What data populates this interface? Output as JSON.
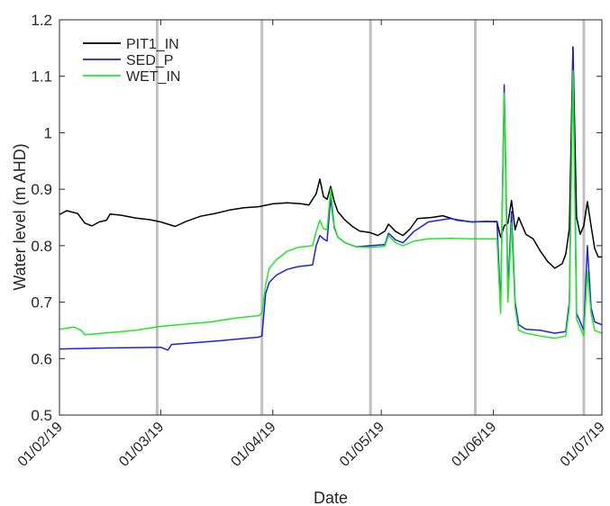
{
  "chart_data": {
    "type": "line",
    "title": "",
    "xlabel": "Date",
    "ylabel": "Water level (m AHD)",
    "x_ticks": [
      "01/02/19",
      "01/03/19",
      "01/04/19",
      "01/05/19",
      "01/06/19",
      "01/07/19"
    ],
    "x_range": [
      "01/02/19",
      "01/07/19"
    ],
    "ylim": [
      0.5,
      1.2
    ],
    "y_ticks": [
      "0.5",
      "0.6",
      "0.7",
      "0.8",
      "0.9",
      "1",
      "1.1",
      "1.2"
    ],
    "grid": false,
    "legend_position": "top-left",
    "vertical_markers": [
      "28/02/19",
      "29/03/19",
      "28/04/19",
      "27/05/19",
      "26/06/19"
    ],
    "marker_color": "#c0c0c0",
    "series": [
      {
        "name": "PIT1_IN",
        "color": "#000000",
        "points": [
          [
            "01/02/19",
            0.855
          ],
          [
            "03/02/19",
            0.862
          ],
          [
            "06/02/19",
            0.857
          ],
          [
            "08/02/19",
            0.84
          ],
          [
            "10/02/19",
            0.835
          ],
          [
            "12/02/19",
            0.842
          ],
          [
            "14/02/19",
            0.845
          ],
          [
            "15/02/19",
            0.856
          ],
          [
            "18/02/19",
            0.854
          ],
          [
            "22/02/19",
            0.849
          ],
          [
            "26/02/19",
            0.846
          ],
          [
            "01/03/19",
            0.842
          ],
          [
            "05/03/19",
            0.834
          ],
          [
            "08/03/19",
            0.843
          ],
          [
            "12/03/19",
            0.852
          ],
          [
            "16/03/19",
            0.857
          ],
          [
            "20/03/19",
            0.863
          ],
          [
            "24/03/19",
            0.867
          ],
          [
            "28/03/19",
            0.869
          ],
          [
            "01/04/19",
            0.874
          ],
          [
            "05/04/19",
            0.876
          ],
          [
            "09/04/19",
            0.874
          ],
          [
            "11/04/19",
            0.872
          ],
          [
            "13/04/19",
            0.892
          ],
          [
            "14/04/19",
            0.918
          ],
          [
            "15/04/19",
            0.887
          ],
          [
            "16/04/19",
            0.882
          ],
          [
            "17/04/19",
            0.905
          ],
          [
            "18/04/19",
            0.878
          ],
          [
            "19/04/19",
            0.86
          ],
          [
            "21/04/19",
            0.845
          ],
          [
            "23/04/19",
            0.834
          ],
          [
            "25/04/19",
            0.826
          ],
          [
            "28/04/19",
            0.823
          ],
          [
            "30/04/19",
            0.818
          ],
          [
            "02/05/19",
            0.826
          ],
          [
            "03/05/19",
            0.838
          ],
          [
            "05/05/19",
            0.825
          ],
          [
            "07/05/19",
            0.818
          ],
          [
            "09/05/19",
            0.83
          ],
          [
            "11/05/19",
            0.848
          ],
          [
            "15/05/19",
            0.85
          ],
          [
            "18/05/19",
            0.853
          ],
          [
            "22/05/19",
            0.845
          ],
          [
            "26/05/19",
            0.842
          ],
          [
            "30/05/19",
            0.843
          ],
          [
            "02/06/19",
            0.842
          ],
          [
            "03/06/19",
            0.815
          ],
          [
            "04/06/19",
            0.835
          ],
          [
            "05/06/19",
            0.84
          ],
          [
            "06/06/19",
            0.88
          ],
          [
            "07/06/19",
            0.828
          ],
          [
            "08/06/19",
            0.85
          ],
          [
            "09/06/19",
            0.835
          ],
          [
            "10/06/19",
            0.82
          ],
          [
            "12/06/19",
            0.812
          ],
          [
            "14/06/19",
            0.79
          ],
          [
            "16/06/19",
            0.772
          ],
          [
            "18/06/19",
            0.76
          ],
          [
            "20/06/19",
            0.768
          ],
          [
            "21/06/19",
            0.785
          ],
          [
            "22/06/19",
            0.83
          ],
          [
            "23/06/19",
            1.152
          ],
          [
            "24/06/19",
            0.85
          ],
          [
            "25/06/19",
            0.82
          ],
          [
            "26/06/19",
            0.835
          ],
          [
            "27/06/19",
            0.878
          ],
          [
            "28/06/19",
            0.835
          ],
          [
            "29/06/19",
            0.795
          ],
          [
            "30/06/19",
            0.78
          ],
          [
            "01/07/19",
            0.78
          ]
        ]
      },
      {
        "name": "SED_P",
        "color": "#1f1fe6",
        "points": [
          [
            "01/02/19",
            0.617
          ],
          [
            "15/02/19",
            0.619
          ],
          [
            "01/03/19",
            0.62
          ],
          [
            "03/03/19",
            0.615
          ],
          [
            "04/03/19",
            0.625
          ],
          [
            "10/03/19",
            0.628
          ],
          [
            "18/03/19",
            0.632
          ],
          [
            "28/03/19",
            0.638
          ],
          [
            "29/03/19",
            0.64
          ],
          [
            "30/03/19",
            0.715
          ],
          [
            "31/03/19",
            0.735
          ],
          [
            "02/04/19",
            0.748
          ],
          [
            "05/04/19",
            0.758
          ],
          [
            "08/04/19",
            0.763
          ],
          [
            "12/04/19",
            0.766
          ],
          [
            "13/04/19",
            0.8
          ],
          [
            "14/04/19",
            0.818
          ],
          [
            "15/04/19",
            0.812
          ],
          [
            "16/04/19",
            0.808
          ],
          [
            "17/04/19",
            0.885
          ],
          [
            "18/04/19",
            0.832
          ],
          [
            "19/04/19",
            0.815
          ],
          [
            "21/04/19",
            0.805
          ],
          [
            "24/04/19",
            0.798
          ],
          [
            "28/04/19",
            0.8
          ],
          [
            "02/05/19",
            0.802
          ],
          [
            "03/05/19",
            0.822
          ],
          [
            "05/05/19",
            0.81
          ],
          [
            "07/05/19",
            0.805
          ],
          [
            "10/05/19",
            0.825
          ],
          [
            "14/05/19",
            0.842
          ],
          [
            "20/05/19",
            0.848
          ],
          [
            "26/05/19",
            0.842
          ],
          [
            "02/06/19",
            0.843
          ],
          [
            "03/06/19",
            0.69
          ],
          [
            "04/06/19",
            1.085
          ],
          [
            "05/06/19",
            0.72
          ],
          [
            "06/06/19",
            0.86
          ],
          [
            "07/06/19",
            0.7
          ],
          [
            "08/06/19",
            0.66
          ],
          [
            "10/06/19",
            0.652
          ],
          [
            "14/06/19",
            0.65
          ],
          [
            "18/06/19",
            0.645
          ],
          [
            "21/06/19",
            0.648
          ],
          [
            "22/06/19",
            0.7
          ],
          [
            "23/06/19",
            1.15
          ],
          [
            "24/06/19",
            0.68
          ],
          [
            "26/06/19",
            0.65
          ],
          [
            "27/06/19",
            0.8
          ],
          [
            "28/06/19",
            0.69
          ],
          [
            "29/06/19",
            0.665
          ],
          [
            "01/07/19",
            0.66
          ]
        ]
      },
      {
        "name": "WET_IN",
        "color": "#22e822",
        "points": [
          [
            "01/02/19",
            0.652
          ],
          [
            "05/02/19",
            0.656
          ],
          [
            "07/02/19",
            0.65
          ],
          [
            "08/02/19",
            0.642
          ],
          [
            "15/02/19",
            0.646
          ],
          [
            "22/02/19",
            0.65
          ],
          [
            "01/03/19",
            0.657
          ],
          [
            "08/03/19",
            0.661
          ],
          [
            "15/03/19",
            0.665
          ],
          [
            "22/03/19",
            0.672
          ],
          [
            "28/03/19",
            0.676
          ],
          [
            "29/03/19",
            0.68
          ],
          [
            "30/03/19",
            0.73
          ],
          [
            "31/03/19",
            0.76
          ],
          [
            "02/04/19",
            0.775
          ],
          [
            "05/04/19",
            0.79
          ],
          [
            "08/04/19",
            0.797
          ],
          [
            "12/04/19",
            0.8
          ],
          [
            "13/04/19",
            0.825
          ],
          [
            "14/04/19",
            0.845
          ],
          [
            "15/04/19",
            0.83
          ],
          [
            "16/04/19",
            0.828
          ],
          [
            "17/04/19",
            0.9
          ],
          [
            "18/04/19",
            0.835
          ],
          [
            "19/04/19",
            0.815
          ],
          [
            "21/04/19",
            0.805
          ],
          [
            "24/04/19",
            0.798
          ],
          [
            "28/04/19",
            0.797
          ],
          [
            "02/05/19",
            0.799
          ],
          [
            "03/05/19",
            0.818
          ],
          [
            "05/05/19",
            0.805
          ],
          [
            "07/05/19",
            0.8
          ],
          [
            "10/05/19",
            0.808
          ],
          [
            "14/05/19",
            0.812
          ],
          [
            "20/05/19",
            0.813
          ],
          [
            "26/05/19",
            0.812
          ],
          [
            "02/06/19",
            0.812
          ],
          [
            "03/06/19",
            0.68
          ],
          [
            "04/06/19",
            1.07
          ],
          [
            "05/06/19",
            0.7
          ],
          [
            "06/06/19",
            0.84
          ],
          [
            "07/06/19",
            0.69
          ],
          [
            "08/06/19",
            0.65
          ],
          [
            "10/06/19",
            0.645
          ],
          [
            "14/06/19",
            0.64
          ],
          [
            "18/06/19",
            0.636
          ],
          [
            "21/06/19",
            0.64
          ],
          [
            "22/06/19",
            0.69
          ],
          [
            "23/06/19",
            1.11
          ],
          [
            "24/06/19",
            0.67
          ],
          [
            "26/06/19",
            0.64
          ],
          [
            "27/06/19",
            0.755
          ],
          [
            "28/06/19",
            0.68
          ],
          [
            "29/06/19",
            0.65
          ],
          [
            "01/07/19",
            0.645
          ]
        ]
      }
    ]
  }
}
